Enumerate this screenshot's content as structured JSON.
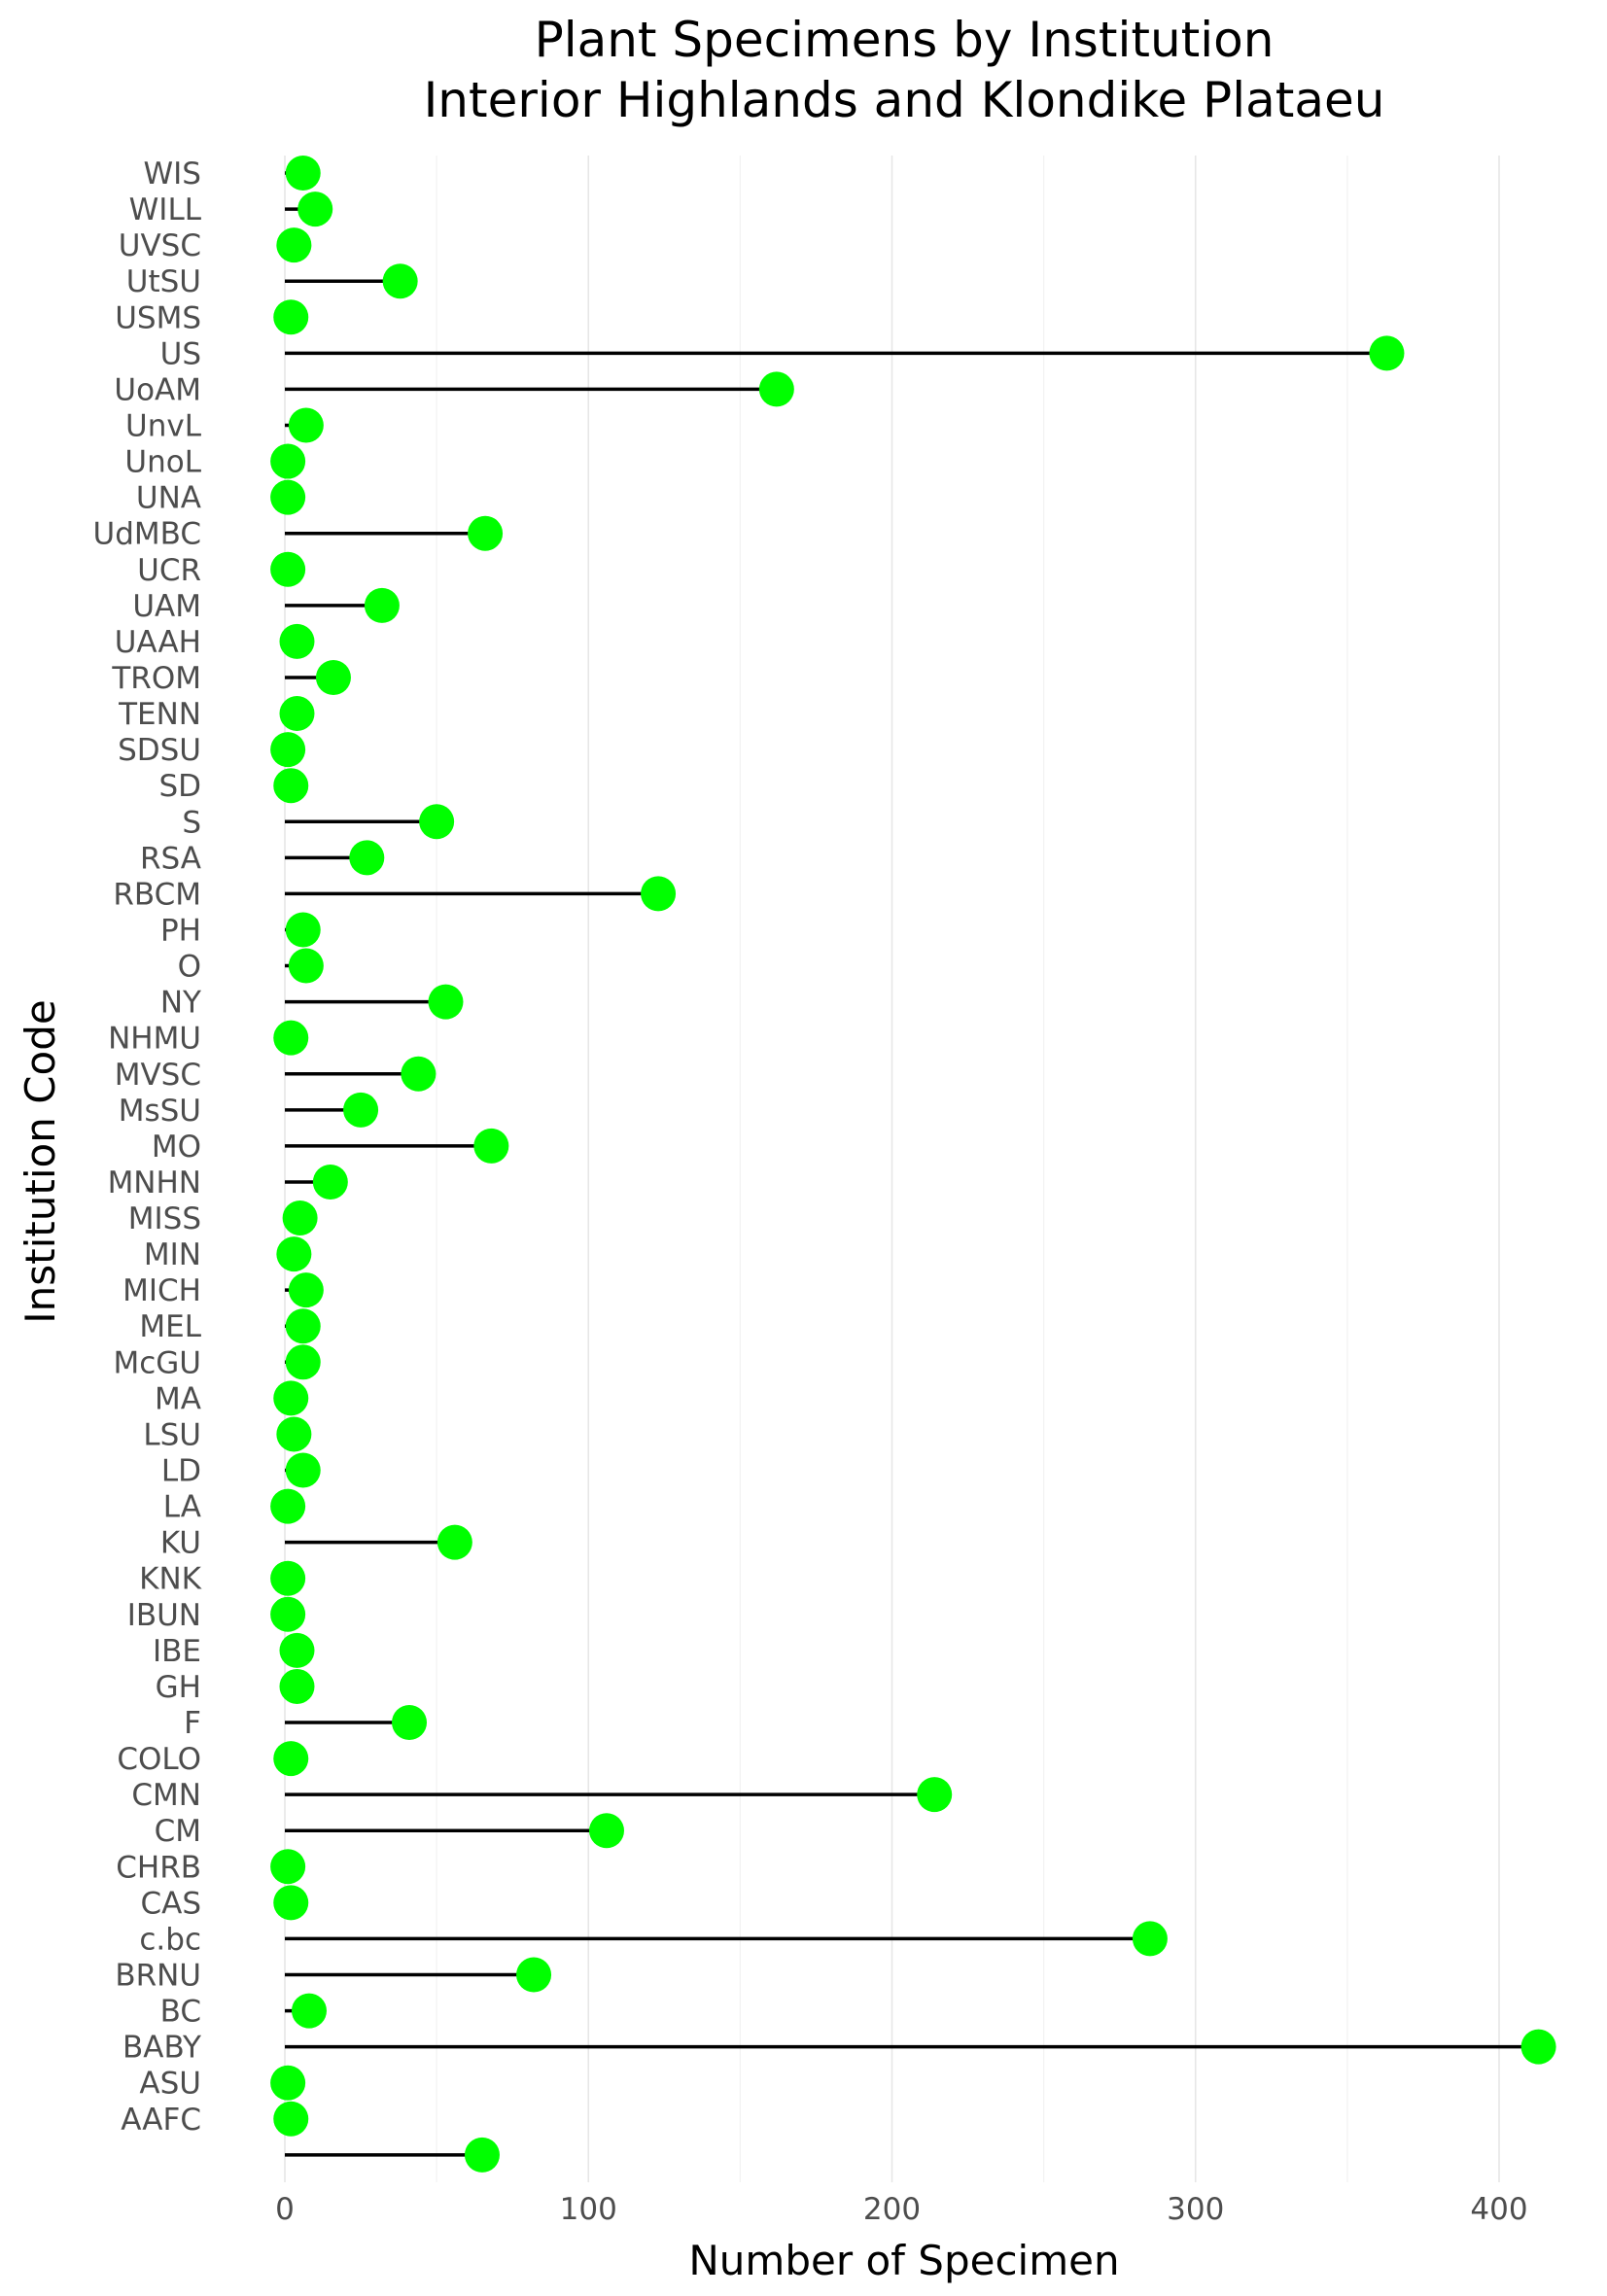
{
  "chart_data": {
    "type": "lollipop",
    "title": "Plant Specimens by Institution",
    "subtitle": "Interior Highlands and Klondike Plataeu",
    "xlabel": "Number of Specimen",
    "ylabel": "Institution Code",
    "xlim": [
      -15,
      420
    ],
    "xticks": [
      0,
      100,
      200,
      300,
      400
    ],
    "point_color": "#00ff00",
    "stem_color": "#000000",
    "categories": [
      "WIS",
      "WILL",
      "UVSC",
      "UtSU",
      "USMS",
      "US",
      "UoAM",
      "UnvL",
      "UnoL",
      "UNA",
      "UdMBC",
      "UCR",
      "UAM",
      "UAAH",
      "TROM",
      "TENN",
      "SDSU",
      "SD",
      "S",
      "RSA",
      "RBCM",
      "PH",
      "O",
      "NY",
      "NHMU",
      "MVSC",
      "MsSU",
      "MO",
      "MNHN",
      "MISS",
      "MIN",
      "MICH",
      "MEL",
      "McGU",
      "MA",
      "LSU",
      "LD",
      "LA",
      "KU",
      "KNK",
      "IBUN",
      "IBE",
      "GH",
      "F",
      "COLO",
      "CMN",
      "CM",
      "CHRB",
      "CAS",
      "c.bc",
      "BRNU",
      "BC",
      "BABY",
      "ASU",
      "AAFC",
      ""
    ],
    "values": [
      6,
      10,
      3,
      38,
      2,
      363,
      162,
      7,
      1,
      1,
      66,
      1,
      32,
      4,
      16,
      4,
      1,
      2,
      50,
      27,
      123,
      6,
      7,
      53,
      2,
      44,
      25,
      68,
      15,
      5,
      3,
      7,
      6,
      6,
      2,
      3,
      6,
      1,
      56,
      1,
      1,
      4,
      4,
      41,
      2,
      214,
      106,
      1,
      2,
      285,
      82,
      8,
      413,
      1,
      2,
      65
    ]
  }
}
